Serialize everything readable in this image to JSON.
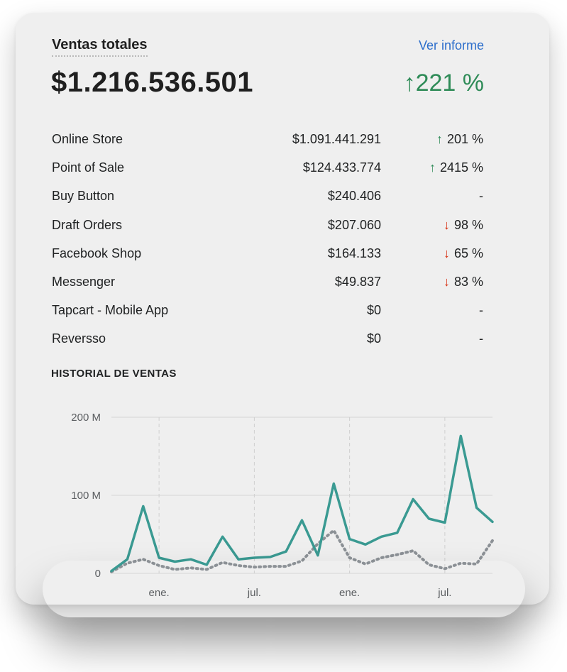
{
  "card": {
    "title": "Ventas totales",
    "report_link": "Ver informe",
    "total": "$1.216.536.501",
    "total_change": "221 %",
    "total_change_arrow": "↑"
  },
  "channels": [
    {
      "name": "Online Store",
      "amount": "$1.091.441.291",
      "change": "201 %",
      "trend": "up"
    },
    {
      "name": "Point of Sale",
      "amount": "$124.433.774",
      "change": "2415 %",
      "trend": "up"
    },
    {
      "name": "Buy Button",
      "amount": "$240.406",
      "change": "-",
      "trend": "none"
    },
    {
      "name": "Draft Orders",
      "amount": "$207.060",
      "change": "98 %",
      "trend": "down"
    },
    {
      "name": "Facebook Shop",
      "amount": "$164.133",
      "change": "65 %",
      "trend": "down"
    },
    {
      "name": "Messenger",
      "amount": "$49.837",
      "change": "83 %",
      "trend": "down"
    },
    {
      "name": "Tapcart - Mobile App",
      "amount": "$0",
      "change": "-",
      "trend": "none"
    },
    {
      "name": "Reversso",
      "amount": "$0",
      "change": "-",
      "trend": "none"
    }
  ],
  "colors": {
    "up": "#2e8b57",
    "down": "#d72c0d",
    "link": "#2c6ecb",
    "current_series": "#3a9a92",
    "previous_series": "#8c9196"
  },
  "chart_data": {
    "type": "line",
    "title": "HISTORIAL DE VENTAS",
    "x_ticks": [
      "ene.",
      "jul.",
      "ene.",
      "jul."
    ],
    "y_ticks": [
      "0",
      "100 M",
      "200 M"
    ],
    "ylim": [
      0,
      200
    ],
    "grid": true,
    "series": [
      {
        "style": "solid",
        "values": [
          3,
          18,
          86,
          20,
          15,
          18,
          11,
          47,
          18,
          20,
          21,
          28,
          68,
          23,
          115,
          44,
          37,
          47,
          52,
          95,
          70,
          65,
          176,
          84,
          66
        ]
      },
      {
        "style": "dotted",
        "values": [
          2,
          13,
          18,
          10,
          5,
          7,
          5,
          14,
          10,
          8,
          9,
          9,
          16,
          38,
          55,
          20,
          12,
          20,
          24,
          29,
          11,
          6,
          13,
          12,
          42
        ]
      }
    ]
  }
}
